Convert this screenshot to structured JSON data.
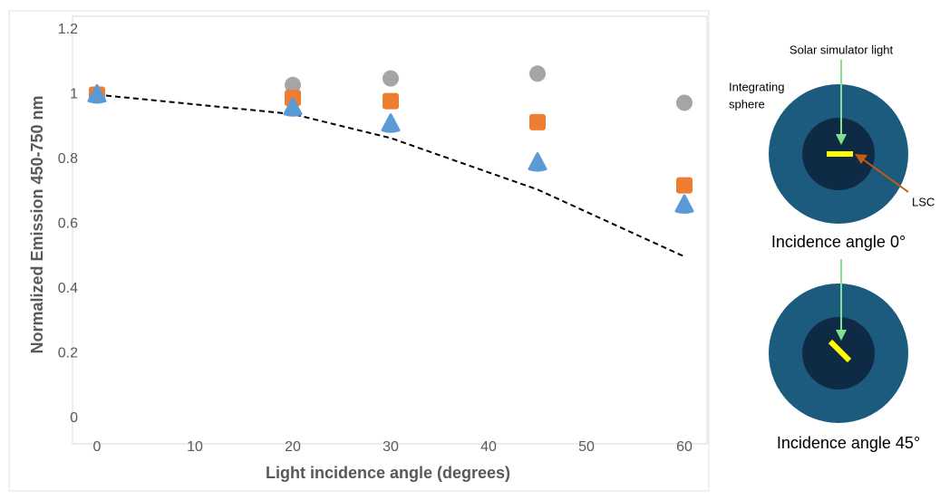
{
  "chart_data": {
    "type": "scatter",
    "xlabel": "Light incidence angle (degrees)",
    "ylabel": "Normalized Emission 450-750 nm",
    "x": [
      0,
      20,
      30,
      45,
      60
    ],
    "series": [
      {
        "color": "#a5a5a5",
        "marker": "circle",
        "values": [
          1.0,
          1.03,
          1.05,
          1.065,
          0.975
        ]
      },
      {
        "color": "#ed7d31",
        "marker": "square",
        "values": [
          1.0,
          0.99,
          0.98,
          0.915,
          0.72
        ]
      },
      {
        "color": "#5b9bd5",
        "marker": "triangle",
        "values": [
          1.0,
          0.96,
          0.91,
          0.79,
          0.66
        ]
      },
      {
        "color": "#000000",
        "marker": "dashed-line",
        "values": [
          1.0,
          0.94,
          0.866,
          0.707,
          0.5
        ]
      }
    ],
    "xlim": [
      0,
      60
    ],
    "xticks": [
      0,
      10,
      20,
      30,
      40,
      50,
      60
    ],
    "ylim": [
      0,
      1.2
    ],
    "yticks": [
      0,
      0.2,
      0.4,
      0.6,
      0.8,
      1,
      1.2
    ],
    "grid": false
  },
  "diagram": {
    "light_label": "Solar simulator light",
    "sphere_label": [
      "Integrating",
      "sphere"
    ],
    "lsc_label": "LSC",
    "caption_0": "Incidence angle 0°",
    "caption_45": "Incidence angle 45°"
  }
}
